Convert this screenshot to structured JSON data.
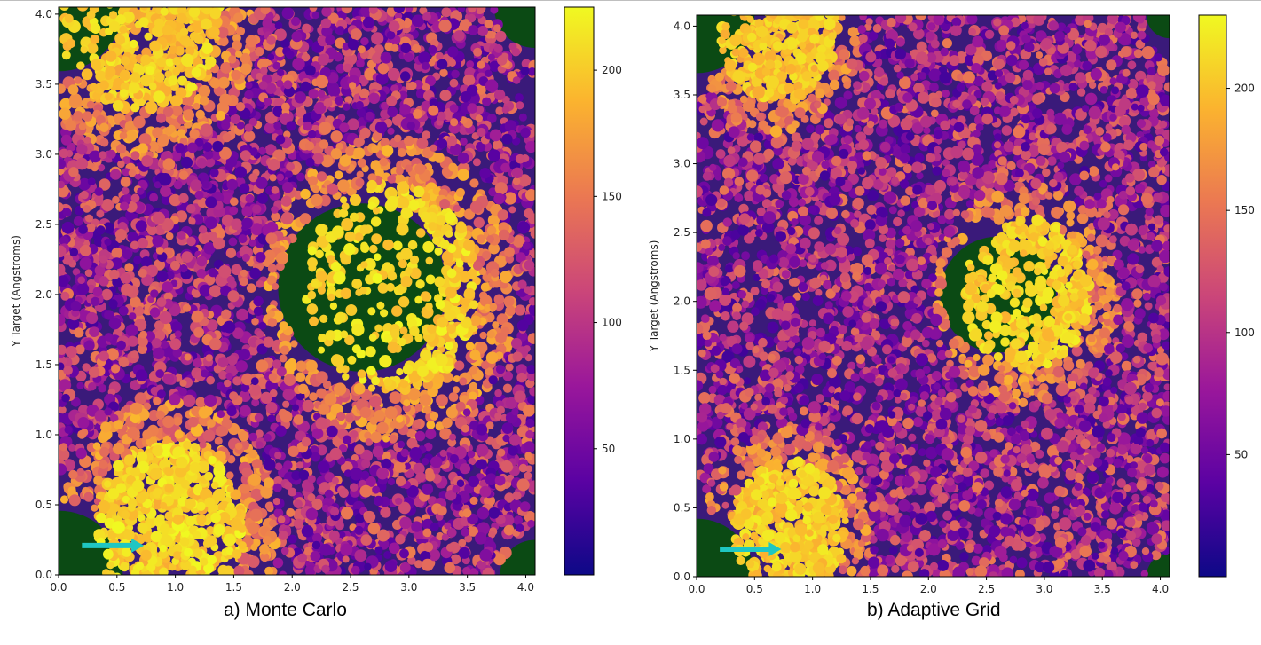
{
  "colors": {
    "background_region": "#0b4a14",
    "arrow": "#1fc6c2",
    "colormap": [
      "#0d0887",
      "#5b02a3",
      "#9a179b",
      "#cb4679",
      "#eb7852",
      "#fbb32f",
      "#f0f921"
    ]
  },
  "chart_data": [
    {
      "type": "scatter",
      "panel": "a",
      "caption": "a) Monte Carlo",
      "xlabel": "",
      "ylabel": "Y Target (Angstroms)",
      "xlim": [
        0,
        4.08
      ],
      "ylim": [
        0,
        4.05
      ],
      "xticks": [
        "0.0",
        "0.5",
        "1.0",
        "1.5",
        "2.0",
        "2.5",
        "3.0",
        "3.5",
        "4.0"
      ],
      "yticks": [
        "0.0",
        "0.5",
        "1.0",
        "1.5",
        "2.0",
        "2.5",
        "3.0",
        "3.5",
        "4.0"
      ],
      "colorbar": {
        "min": 0,
        "max": 225,
        "ticks": [
          "50",
          "100",
          "150",
          "200"
        ]
      },
      "dark_regions": [
        {
          "cx": 0.0,
          "cy": 4.05,
          "r": 0.55
        },
        {
          "cx": 4.08,
          "cy": 4.05,
          "r": 0.35
        },
        {
          "cx": 2.6,
          "cy": 2.05,
          "r": 0.72
        },
        {
          "cx": 0.0,
          "cy": 0.0,
          "r": 0.55
        },
        {
          "cx": 4.08,
          "cy": 0.0,
          "r": 0.3
        }
      ],
      "hot_clusters": [
        {
          "cx": 0.7,
          "cy": 4.0,
          "r": 0.7,
          "value": 200
        },
        {
          "cx": 2.85,
          "cy": 2.05,
          "r": 0.75,
          "value": 205
        },
        {
          "cx": 0.95,
          "cy": 0.3,
          "r": 0.65,
          "value": 205
        }
      ],
      "arrow": {
        "x_start": 0.2,
        "x_end": 0.7,
        "y": 0.21
      }
    },
    {
      "type": "scatter",
      "panel": "b",
      "caption": "b) Adaptive Grid",
      "xlabel": "",
      "ylabel": "Y Target (Angstroms)",
      "xlim": [
        0,
        4.08
      ],
      "ylim": [
        0,
        4.08
      ],
      "xticks": [
        "0.0",
        "0.5",
        "1.0",
        "1.5",
        "2.0",
        "2.5",
        "3.0",
        "3.5",
        "4.0"
      ],
      "yticks": [
        "0.0",
        "0.5",
        "1.0",
        "1.5",
        "2.0",
        "2.5",
        "3.0",
        "3.5",
        "4.0"
      ],
      "colorbar": {
        "min": 0,
        "max": 230,
        "ticks": [
          "50",
          "100",
          "150",
          "200"
        ]
      },
      "dark_regions": [
        {
          "cx": 0.0,
          "cy": 4.08,
          "r": 0.5
        },
        {
          "cx": 4.08,
          "cy": 4.08,
          "r": 0.2
        },
        {
          "cx": 2.6,
          "cy": 2.05,
          "r": 0.5
        },
        {
          "cx": 0.0,
          "cy": 0.0,
          "r": 0.5
        },
        {
          "cx": 4.08,
          "cy": 0.0,
          "r": 0.2
        }
      ],
      "hot_clusters": [
        {
          "cx": 0.7,
          "cy": 3.95,
          "r": 0.5,
          "value": 200
        },
        {
          "cx": 2.85,
          "cy": 2.05,
          "r": 0.55,
          "value": 205
        },
        {
          "cx": 0.8,
          "cy": 0.35,
          "r": 0.5,
          "value": 205
        }
      ],
      "arrow": {
        "x_start": 0.2,
        "x_end": 0.7,
        "y": 0.2
      }
    }
  ]
}
